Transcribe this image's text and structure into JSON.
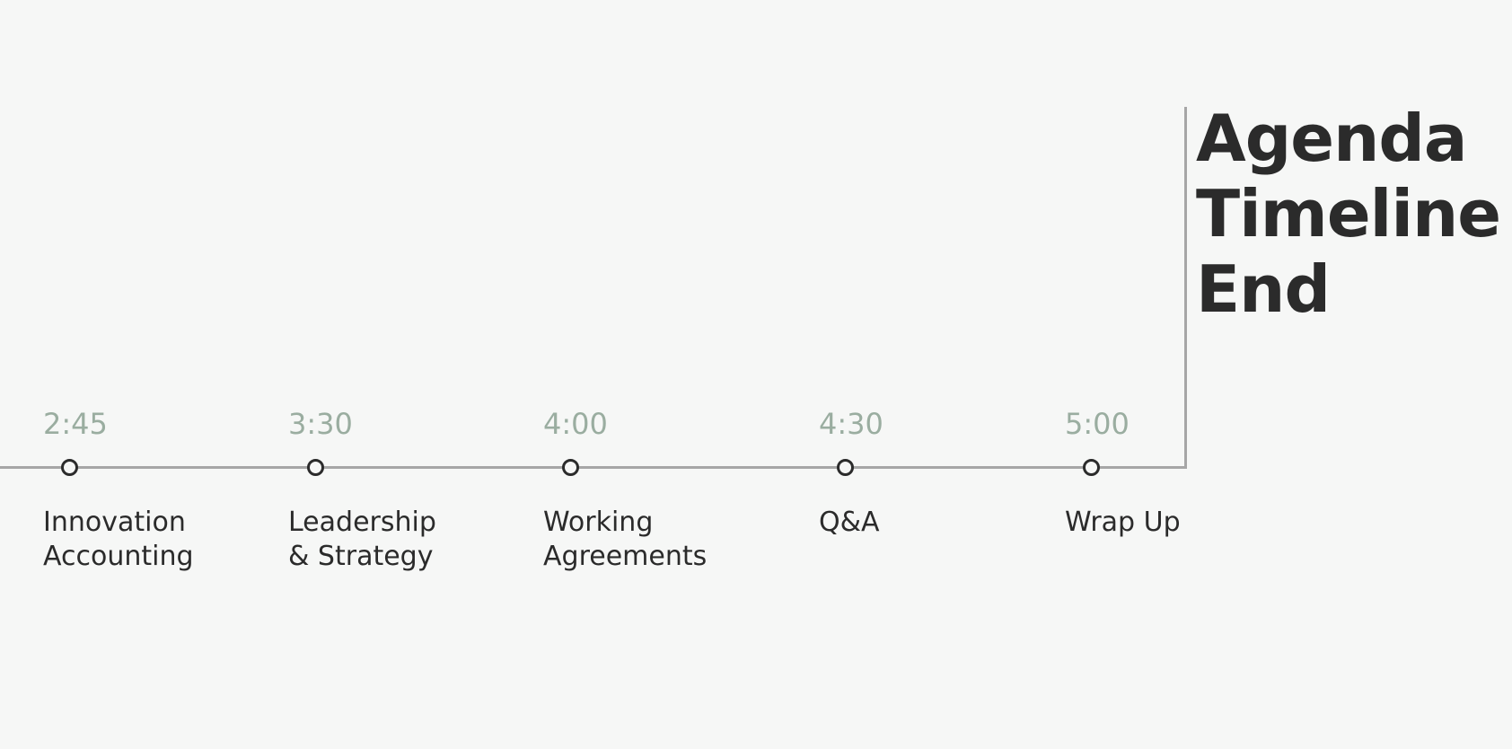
{
  "title": {
    "line1": "Agenda",
    "line2": "Timeline",
    "line3": "End"
  },
  "milestones": [
    {
      "time": "2:45",
      "label_line1": "Innovation",
      "label_line2": "Accounting"
    },
    {
      "time": "3:30",
      "label_line1": "Leadership",
      "label_line2": "& Strategy"
    },
    {
      "time": "4:00",
      "label_line1": "Working",
      "label_line2": "Agreements"
    },
    {
      "time": "4:30",
      "label_line1": "Q&A",
      "label_line2": ""
    },
    {
      "time": "5:00",
      "label_line1": "Wrap Up",
      "label_line2": ""
    }
  ],
  "colors": {
    "background": "#f6f7f6",
    "line": "#a6a6a6",
    "time_text": "#9aada0",
    "dark_text": "#2b2b2b"
  }
}
